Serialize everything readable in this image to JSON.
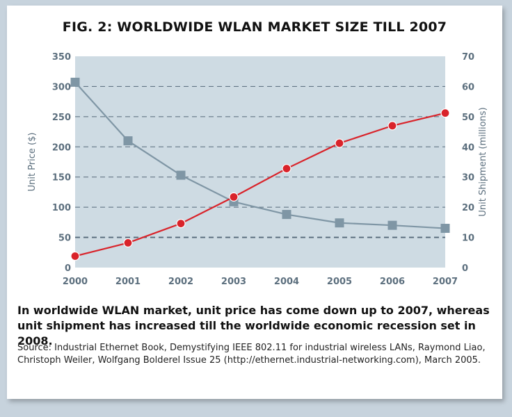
{
  "title": "FIG. 2: WORLDWIDE WLAN MARKET SIZE TILL 2007",
  "caption": "In worldwide WLAN market, unit price has come down up to 2007, whereas unit shipment has increased till the worldwide economic recession set in 2008.",
  "source": "Source: Industrial Ethernet Book, Demystifying IEEE 802.11 for industrial wireless LANs, Raymond Liao, Christoph Weiler, Wolfgang Bolderel Issue 25 (http://ethernet.industrial-networking.com), March 2005.",
  "colors": {
    "plot_bg": "#cedbe3",
    "price": "#7f96a5",
    "shipment": "#d9232a",
    "grid": "#55697a",
    "axis_text": "#5c6f7e"
  },
  "chart_data": {
    "type": "line",
    "x": [
      "2000",
      "2001",
      "2002",
      "2003",
      "2004",
      "2005",
      "2006",
      "2007"
    ],
    "ylabel_left": "Unit Price ($)",
    "ylabel_right": "Unit Shipment (millions)",
    "ylim_left": [
      0,
      350
    ],
    "ylim_right": [
      0,
      70
    ],
    "yticks_left": [
      "0",
      "50",
      "100",
      "150",
      "200",
      "250",
      "300",
      "350"
    ],
    "yticks_right": [
      "0",
      "10",
      "20",
      "30",
      "40",
      "50",
      "60",
      "70"
    ],
    "grid": "dashed horizontal",
    "series": [
      {
        "marker": "square",
        "axis": "left",
        "values": [
          307,
          210,
          153,
          109,
          88,
          74,
          70,
          65
        ]
      },
      {
        "marker": "circle",
        "axis": "right",
        "values": [
          3.8,
          8.2,
          14.6,
          23.4,
          32.8,
          41.2,
          47.0,
          51.2
        ]
      }
    ]
  }
}
